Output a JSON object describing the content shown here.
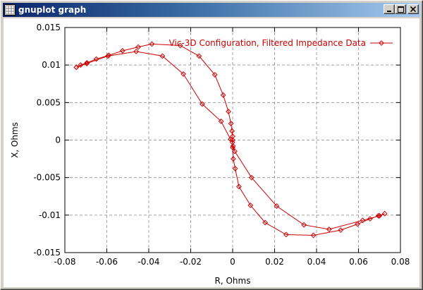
{
  "window": {
    "title": "gnuplot graph",
    "icon": "gnuplot-app-icon",
    "buttons": [
      "minimize",
      "maximize",
      "close"
    ]
  },
  "chart_data": {
    "type": "line",
    "xlabel": "R, Ohms",
    "ylabel": "X, Ohms",
    "xlim": [
      -0.08,
      0.08
    ],
    "ylim": [
      -0.015,
      0.015
    ],
    "xticks": [
      "-0.08",
      "-0.06",
      "-0.04",
      "-0.02",
      "0",
      "0.02",
      "0.04",
      "0.06",
      "0.08"
    ],
    "yticks": [
      "0.015",
      "0.01",
      "0.005",
      "0",
      "-0.005",
      "-0.01",
      "-0.015"
    ],
    "xtick_values": [
      -0.08,
      -0.06,
      -0.04,
      -0.02,
      0,
      0.02,
      0.04,
      0.06,
      0.08
    ],
    "ytick_values": [
      0.015,
      0.01,
      0.005,
      0,
      -0.005,
      -0.01,
      -0.015
    ],
    "grid": true,
    "legend_position": "top-right",
    "color": "#cc0000",
    "series": [
      {
        "name": "Vic-3D Configuration, Filtered Impedance Data",
        "x": [
          -0.0745,
          -0.0725,
          -0.0695,
          -0.065,
          -0.059,
          -0.0525,
          -0.045,
          -0.0385,
          -0.025,
          -0.016,
          -0.0085,
          -0.0045,
          -0.002,
          -0.0008,
          -0.0003,
          0.0,
          0.0,
          0.0,
          0.0003,
          0.0012,
          0.003,
          0.0085,
          0.0155,
          0.0255,
          0.0385,
          0.0515,
          0.0595,
          0.0655,
          0.0695,
          0.0725,
          0.07,
          0.062,
          0.046,
          0.034,
          0.021,
          0.009,
          0.001,
          0.0002,
          -0.0001,
          -0.001,
          -0.0055,
          -0.0145,
          -0.0235,
          -0.0335,
          -0.046,
          -0.0595,
          -0.0695,
          -0.0745
        ],
        "y": [
          0.0097,
          0.01,
          0.0103,
          0.0108,
          0.0113,
          0.0119,
          0.0124,
          0.0128,
          0.0126,
          0.0112,
          0.0087,
          0.006,
          0.0038,
          0.0022,
          0.0012,
          0.0005,
          0.0,
          -0.001,
          -0.0025,
          -0.0038,
          -0.0062,
          -0.0087,
          -0.011,
          -0.0126,
          -0.0127,
          -0.012,
          -0.0112,
          -0.0105,
          -0.0101,
          -0.0098,
          -0.0101,
          -0.0107,
          -0.0119,
          -0.0113,
          -0.0088,
          -0.005,
          -0.0015,
          -0.0008,
          -0.0003,
          0.0001,
          0.0025,
          0.0048,
          0.0088,
          0.0112,
          0.0118,
          0.0112,
          0.0102,
          0.0097
        ]
      }
    ]
  }
}
